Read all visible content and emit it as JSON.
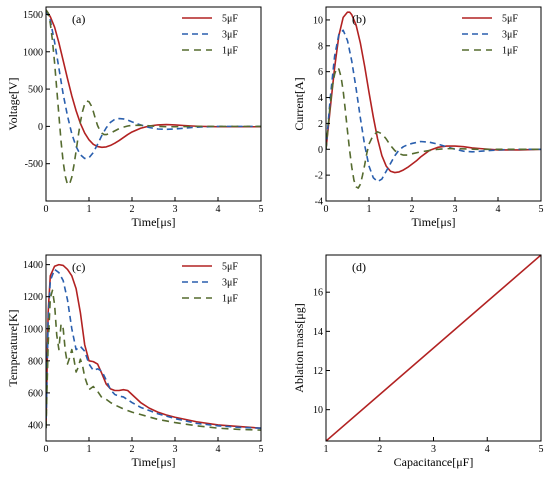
{
  "colors": {
    "5uF": "#b22222",
    "3uF": "#2a5fae",
    "1uF": "#556b2f"
  },
  "chart_data": [
    {
      "type": "line",
      "panel_label": "(a)",
      "xlabel": "Time[μs]",
      "ylabel": "Voltage[V]",
      "xlim": [
        0,
        5
      ],
      "ylim": [
        -1000,
        1600
      ],
      "xticks": [
        "0",
        "1",
        "2",
        "3",
        "4",
        "5"
      ],
      "yticks": [
        "-500",
        "0",
        "500",
        "1000",
        "1500"
      ],
      "legend": "top-right",
      "series": [
        {
          "name": "5μF",
          "color": "#b22222",
          "dash": "solid",
          "x": [
            0,
            0.1,
            0.2,
            0.3,
            0.4,
            0.5,
            0.6,
            0.7,
            0.8,
            0.9,
            1.0,
            1.1,
            1.2,
            1.3,
            1.4,
            1.5,
            1.6,
            1.7,
            1.8,
            1.9,
            2.0,
            2.2,
            2.4,
            2.6,
            2.8,
            3.0,
            3.2,
            3.4,
            3.6,
            3.8,
            4.0,
            4.5,
            5.0
          ],
          "y": [
            1560,
            1470,
            1330,
            1120,
            880,
            640,
            410,
            210,
            40,
            -90,
            -180,
            -240,
            -270,
            -280,
            -275,
            -255,
            -225,
            -190,
            -150,
            -110,
            -75,
            -25,
            5,
            20,
            25,
            20,
            12,
            5,
            0,
            -3,
            -5,
            -5,
            -5
          ]
        },
        {
          "name": "3μF",
          "color": "#2a5fae",
          "dash": "6,4",
          "x": [
            0,
            0.1,
            0.2,
            0.3,
            0.4,
            0.5,
            0.6,
            0.7,
            0.8,
            0.9,
            1.0,
            1.1,
            1.2,
            1.3,
            1.4,
            1.5,
            1.6,
            1.7,
            1.8,
            1.9,
            2.0,
            2.2,
            2.4,
            2.6,
            2.8,
            3.0,
            3.2,
            3.4,
            3.6,
            4.0,
            4.5,
            5.0
          ],
          "y": [
            1560,
            1420,
            1130,
            780,
            430,
            140,
            -100,
            -270,
            -380,
            -430,
            -420,
            -350,
            -240,
            -120,
            -20,
            55,
            95,
            105,
            100,
            85,
            60,
            20,
            -15,
            -35,
            -40,
            -35,
            -25,
            -15,
            -8,
            0,
            0,
            0
          ]
        },
        {
          "name": "1μF",
          "color": "#556b2f",
          "dash": "7,5",
          "x": [
            0,
            0.05,
            0.1,
            0.15,
            0.2,
            0.25,
            0.3,
            0.35,
            0.4,
            0.45,
            0.5,
            0.55,
            0.6,
            0.65,
            0.7,
            0.75,
            0.8,
            0.85,
            0.9,
            0.95,
            1.0,
            1.05,
            1.1,
            1.15,
            1.2,
            1.25,
            1.3,
            1.35,
            1.4,
            1.5,
            1.6,
            1.7,
            1.8,
            1.9,
            2.0,
            2.2,
            2.4,
            2.6,
            2.8,
            3.0,
            3.5,
            4.0,
            5.0
          ],
          "y": [
            1560,
            1520,
            1380,
            1150,
            850,
            500,
            150,
            -200,
            -480,
            -670,
            -780,
            -770,
            -680,
            -520,
            -330,
            -130,
            60,
            200,
            300,
            340,
            330,
            280,
            200,
            100,
            10,
            -50,
            -90,
            -110,
            -110,
            -90,
            -60,
            -30,
            -10,
            5,
            15,
            15,
            8,
            0,
            -5,
            -5,
            0,
            0,
            0
          ]
        }
      ]
    },
    {
      "type": "line",
      "panel_label": "(b)",
      "xlabel": "Time[μs]",
      "ylabel": "Current[A]",
      "xlim": [
        0,
        5
      ],
      "ylim": [
        -4,
        11
      ],
      "xticks": [
        "0",
        "1",
        "2",
        "3",
        "4",
        "5"
      ],
      "yticks": [
        "-4",
        "-2",
        "0",
        "2",
        "4",
        "6",
        "8",
        "10"
      ],
      "legend": "top-right",
      "series": [
        {
          "name": "5μF",
          "color": "#b22222",
          "dash": "solid",
          "x": [
            0,
            0.1,
            0.2,
            0.3,
            0.4,
            0.5,
            0.55,
            0.6,
            0.7,
            0.8,
            0.9,
            1.0,
            1.1,
            1.2,
            1.3,
            1.4,
            1.5,
            1.6,
            1.7,
            1.8,
            1.9,
            2.0,
            2.1,
            2.2,
            2.4,
            2.6,
            2.8,
            3.0,
            3.2,
            3.4,
            3.6,
            3.8,
            4.0,
            4.5,
            5.0
          ],
          "y": [
            0,
            3.2,
            6.3,
            8.8,
            10.2,
            10.6,
            10.6,
            10.4,
            9.6,
            8.2,
            6.4,
            4.4,
            2.5,
            0.8,
            -0.5,
            -1.3,
            -1.7,
            -1.8,
            -1.75,
            -1.6,
            -1.4,
            -1.15,
            -0.9,
            -0.6,
            -0.1,
            0.15,
            0.25,
            0.25,
            0.2,
            0.1,
            0.05,
            0,
            -0.05,
            -0.05,
            0
          ]
        },
        {
          "name": "3μF",
          "color": "#2a5fae",
          "dash": "6,4",
          "x": [
            0,
            0.1,
            0.2,
            0.3,
            0.4,
            0.5,
            0.6,
            0.7,
            0.8,
            0.9,
            1.0,
            1.1,
            1.2,
            1.3,
            1.4,
            1.5,
            1.6,
            1.7,
            1.8,
            1.9,
            2.0,
            2.2,
            2.4,
            2.6,
            2.8,
            3.0,
            3.2,
            3.4,
            3.6,
            4.0,
            4.5,
            5.0
          ],
          "y": [
            0,
            4.0,
            7.2,
            8.9,
            9.2,
            8.4,
            6.8,
            4.7,
            2.4,
            0.3,
            -1.3,
            -2.2,
            -2.5,
            -2.3,
            -1.7,
            -1.1,
            -0.5,
            -0.05,
            0.2,
            0.35,
            0.45,
            0.6,
            0.55,
            0.4,
            0.2,
            0,
            -0.15,
            -0.2,
            -0.15,
            -0.05,
            0,
            0
          ]
        },
        {
          "name": "1μF",
          "color": "#556b2f",
          "dash": "7,5",
          "x": [
            0,
            0.05,
            0.1,
            0.15,
            0.2,
            0.25,
            0.3,
            0.35,
            0.4,
            0.45,
            0.5,
            0.55,
            0.6,
            0.65,
            0.7,
            0.75,
            0.8,
            0.85,
            0.9,
            0.95,
            1.0,
            1.1,
            1.2,
            1.3,
            1.4,
            1.5,
            1.6,
            1.7,
            1.8,
            1.9,
            2.0,
            2.2,
            2.4,
            2.6,
            2.8,
            3.0,
            3.5,
            4.0,
            5.0
          ],
          "y": [
            0,
            1.8,
            3.5,
            4.9,
            5.8,
            6.3,
            6.2,
            5.6,
            4.5,
            3.0,
            1.4,
            -0.1,
            -1.4,
            -2.4,
            -2.9,
            -3.0,
            -2.7,
            -2.0,
            -1.2,
            -0.3,
            0.4,
            1.1,
            1.35,
            1.2,
            0.8,
            0.3,
            -0.1,
            -0.35,
            -0.45,
            -0.45,
            -0.35,
            -0.2,
            -0.1,
            0,
            0.05,
            0.05,
            0,
            0,
            0
          ]
        }
      ]
    },
    {
      "type": "line",
      "panel_label": "(c)",
      "xlabel": "Time[μs]",
      "ylabel": "Temperature[K]",
      "xlim": [
        0,
        5
      ],
      "ylim": [
        300,
        1460
      ],
      "xticks": [
        "0",
        "1",
        "2",
        "3",
        "4",
        "5"
      ],
      "yticks": [
        "400",
        "600",
        "800",
        "1000",
        "1200",
        "1400"
      ],
      "legend": "top-right",
      "series": [
        {
          "name": "5μF",
          "color": "#b22222",
          "dash": "solid",
          "x": [
            0,
            0.05,
            0.1,
            0.2,
            0.3,
            0.4,
            0.5,
            0.6,
            0.7,
            0.8,
            0.9,
            1.0,
            1.1,
            1.2,
            1.3,
            1.4,
            1.5,
            1.6,
            1.7,
            1.8,
            1.9,
            2.0,
            2.1,
            2.2,
            2.4,
            2.6,
            2.8,
            3.0,
            3.5,
            4.0,
            4.5,
            5.0
          ],
          "y": [
            380,
            1100,
            1330,
            1390,
            1400,
            1395,
            1370,
            1330,
            1250,
            1100,
            900,
            800,
            795,
            780,
            720,
            655,
            625,
            615,
            615,
            620,
            615,
            590,
            565,
            540,
            505,
            480,
            462,
            448,
            420,
            400,
            390,
            380
          ]
        },
        {
          "name": "3μF",
          "color": "#2a5fae",
          "dash": "6,4",
          "x": [
            0,
            0.05,
            0.1,
            0.2,
            0.3,
            0.4,
            0.5,
            0.6,
            0.7,
            0.8,
            0.9,
            1.0,
            1.1,
            1.2,
            1.3,
            1.4,
            1.5,
            1.6,
            1.7,
            1.8,
            2.0,
            2.2,
            2.4,
            2.6,
            2.8,
            3.0,
            3.5,
            4.0,
            4.5,
            5.0
          ],
          "y": [
            380,
            1050,
            1300,
            1370,
            1350,
            1300,
            1180,
            1000,
            870,
            890,
            860,
            780,
            740,
            750,
            735,
            680,
            620,
            590,
            580,
            575,
            540,
            510,
            490,
            470,
            455,
            440,
            410,
            395,
            385,
            380
          ]
        },
        {
          "name": "1μF",
          "color": "#556b2f",
          "dash": "7,5",
          "x": [
            0,
            0.05,
            0.1,
            0.15,
            0.2,
            0.25,
            0.3,
            0.35,
            0.4,
            0.45,
            0.5,
            0.55,
            0.6,
            0.65,
            0.7,
            0.75,
            0.8,
            0.85,
            0.9,
            0.95,
            1.0,
            1.1,
            1.2,
            1.3,
            1.4,
            1.5,
            1.6,
            1.8,
            2.0,
            2.2,
            2.4,
            2.6,
            2.8,
            3.0,
            3.5,
            4.0,
            4.5,
            5.0
          ],
          "y": [
            380,
            900,
            1190,
            1240,
            1150,
            960,
            870,
            1030,
            1000,
            860,
            780,
            820,
            870,
            810,
            730,
            760,
            810,
            770,
            700,
            660,
            620,
            640,
            610,
            570,
            560,
            540,
            525,
            500,
            480,
            465,
            450,
            435,
            425,
            415,
            395,
            380,
            372,
            368
          ]
        }
      ]
    },
    {
      "type": "line",
      "panel_label": "(d)",
      "xlabel": "Capacitance[μF]",
      "ylabel": "Ablation mass[μg]",
      "xlim": [
        1,
        5
      ],
      "ylim": [
        8.4,
        17.9
      ],
      "xticks": [
        "1",
        "2",
        "3",
        "4",
        "5"
      ],
      "yticks": [
        "10",
        "12",
        "14",
        "16"
      ],
      "series": [
        {
          "color": "#b22222",
          "dash": "solid",
          "x": [
            1,
            5
          ],
          "y": [
            8.4,
            17.9
          ]
        }
      ]
    }
  ]
}
